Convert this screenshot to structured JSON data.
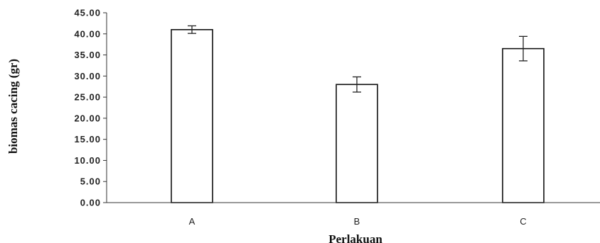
{
  "chart_data": {
    "type": "bar",
    "categories": [
      "A",
      "B",
      "C"
    ],
    "values": [
      41.0,
      28.0,
      36.5
    ],
    "errors": [
      0.9,
      1.8,
      2.9
    ],
    "ylabel": "biomas cacing (gr)",
    "xlabel": "Perlakuan",
    "ylim": [
      0,
      45
    ],
    "yticks": [
      "0.00",
      "5.00",
      "10.00",
      "15.00",
      "20.00",
      "25.00",
      "30.00",
      "35.00",
      "40.00",
      "45.00"
    ],
    "grid": false,
    "colors": {
      "bar_fill": "#ffffff",
      "bar_stroke": "#111111"
    }
  }
}
